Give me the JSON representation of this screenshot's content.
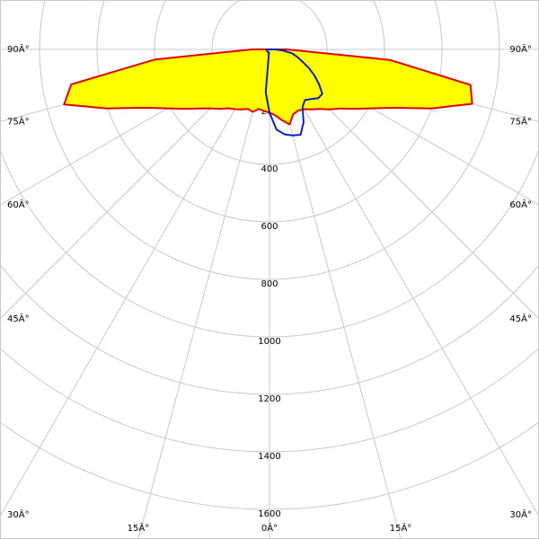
{
  "chart_data": {
    "type": "polar",
    "angles": [
      -90,
      -85,
      -80,
      -75,
      -70,
      -65,
      -60,
      -55,
      -50,
      -45,
      -40,
      -35,
      -30,
      -25,
      -20,
      -15,
      -10,
      -5,
      0,
      5,
      10,
      15,
      20,
      25,
      30,
      35,
      40,
      45,
      50,
      55,
      60,
      65,
      70,
      75,
      80,
      85,
      90
    ],
    "series": [
      {
        "color": "#e00000",
        "fill": "#ffff00",
        "values": [
          60,
          400,
          700,
          740,
          600,
          480,
          410,
          360,
          320,
          290,
          270,
          250,
          240,
          230,
          220,
          225,
          210,
          215,
          220,
          230,
          250,
          270,
          240,
          235,
          240,
          255,
          270,
          295,
          320,
          360,
          410,
          480,
          600,
          730,
          710,
          420,
          60
        ]
      },
      {
        "color": "#1020c0",
        "values": [
          10,
          10,
          10,
          10,
          10,
          10,
          10,
          10,
          10,
          10,
          10,
          10,
          10,
          10,
          10,
          10,
          10,
          150,
          220,
          280,
          300,
          310,
          316,
          280,
          230,
          215,
          225,
          240,
          240,
          210,
          180,
          150,
          120,
          100,
          80,
          50,
          20
        ]
      }
    ],
    "rlim": [
      0,
      1600
    ],
    "rticks": [
      200,
      400,
      600,
      800,
      1000,
      1200,
      1400,
      1600
    ],
    "angle_ticks": [
      {
        "value": -90,
        "label": "90Â°"
      },
      {
        "value": -75,
        "label": "75Â°"
      },
      {
        "value": -60,
        "label": "60Â°"
      },
      {
        "value": -45,
        "label": "45Â°"
      },
      {
        "value": -30,
        "label": "30Â°"
      },
      {
        "value": -15,
        "label": "15Â°"
      },
      {
        "value": 0,
        "label": "0Â°"
      },
      {
        "value": 15,
        "label": "15Â°"
      },
      {
        "value": 30,
        "label": "30Â°"
      },
      {
        "value": 45,
        "label": "45Â°"
      },
      {
        "value": 60,
        "label": "60Â°"
      },
      {
        "value": 75,
        "label": "75Â°"
      },
      {
        "value": 90,
        "label": "90Â°"
      }
    ],
    "grid": true
  }
}
